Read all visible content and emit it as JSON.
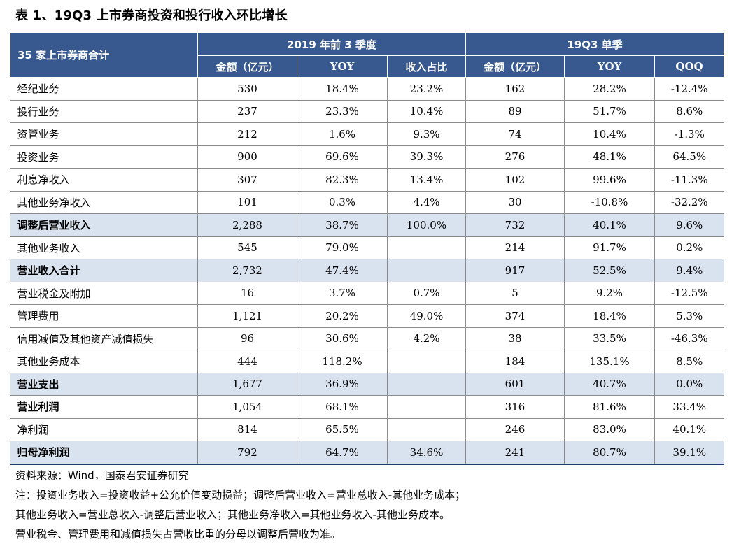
{
  "title": "表 1、19Q3 上市券商投资和投行收入环比增长",
  "header": {
    "corner": "35 家上市券商合计",
    "group1": "2019 年前 3 季度",
    "group2": "19Q3 单季",
    "cols": [
      "金额（亿元）",
      "YOY",
      "收入占比",
      "金额（亿元）",
      "YOY",
      "QOQ"
    ]
  },
  "rows": [
    {
      "label": "经纪业务",
      "values": [
        "530",
        "18.4%",
        "23.2%",
        "162",
        "28.2%",
        "-12.4%"
      ],
      "highlight": false,
      "bold": false
    },
    {
      "label": "投行业务",
      "values": [
        "237",
        "23.3%",
        "10.4%",
        "89",
        "51.7%",
        "8.6%"
      ],
      "highlight": false,
      "bold": false
    },
    {
      "label": "资管业务",
      "values": [
        "212",
        "1.6%",
        "9.3%",
        "74",
        "10.4%",
        "-1.3%"
      ],
      "highlight": false,
      "bold": false
    },
    {
      "label": "投资业务",
      "values": [
        "900",
        "69.6%",
        "39.3%",
        "276",
        "48.1%",
        "64.5%"
      ],
      "highlight": false,
      "bold": false
    },
    {
      "label": "利息净收入",
      "values": [
        "307",
        "82.3%",
        "13.4%",
        "102",
        "99.6%",
        "-11.3%"
      ],
      "highlight": false,
      "bold": false
    },
    {
      "label": "其他业务净收入",
      "values": [
        "101",
        "0.3%",
        "4.4%",
        "30",
        "-10.8%",
        "-32.2%"
      ],
      "highlight": false,
      "bold": false
    },
    {
      "label": "调整后营业收入",
      "values": [
        "2,288",
        "38.7%",
        "100.0%",
        "732",
        "40.1%",
        "9.6%"
      ],
      "highlight": true,
      "bold": true
    },
    {
      "label": "其他业务收入",
      "values": [
        "545",
        "79.0%",
        "",
        "214",
        "91.7%",
        "0.2%"
      ],
      "highlight": false,
      "bold": false
    },
    {
      "label": "营业收入合计",
      "values": [
        "2,732",
        "47.4%",
        "",
        "917",
        "52.5%",
        "9.4%"
      ],
      "highlight": true,
      "bold": true
    },
    {
      "label": "营业税金及附加",
      "values": [
        "16",
        "3.7%",
        "0.7%",
        "5",
        "9.2%",
        "-12.5%"
      ],
      "highlight": false,
      "bold": false
    },
    {
      "label": "管理费用",
      "values": [
        "1,121",
        "20.2%",
        "49.0%",
        "374",
        "18.4%",
        "5.3%"
      ],
      "highlight": false,
      "bold": false
    },
    {
      "label": "信用减值及其他资产减值损失",
      "values": [
        "96",
        "30.6%",
        "4.2%",
        "38",
        "33.5%",
        "-46.3%"
      ],
      "highlight": false,
      "bold": false
    },
    {
      "label": "其他业务成本",
      "values": [
        "444",
        "118.2%",
        "",
        "184",
        "135.1%",
        "8.5%"
      ],
      "highlight": false,
      "bold": false
    },
    {
      "label": "营业支出",
      "values": [
        "1,677",
        "36.9%",
        "",
        "601",
        "40.7%",
        "0.0%"
      ],
      "highlight": true,
      "bold": true
    },
    {
      "label": "营业利润",
      "values": [
        "1,054",
        "68.1%",
        "",
        "316",
        "81.6%",
        "33.4%"
      ],
      "highlight": false,
      "bold": true
    },
    {
      "label": "净利润",
      "values": [
        "814",
        "65.5%",
        "",
        "246",
        "83.0%",
        "40.1%"
      ],
      "highlight": false,
      "bold": false
    },
    {
      "label": "归母净利润",
      "values": [
        "792",
        "64.7%",
        "34.6%",
        "241",
        "80.7%",
        "39.1%"
      ],
      "highlight": true,
      "bold": true
    }
  ],
  "notes": [
    "资料来源：Wind，国泰君安证券研究",
    "注：投资业务收入=投资收益+公允价值变动损益；调整后营业收入=营业总收入-其他业务成本；",
    "其他业务收入=营业总收入-调整后营业收入；其他业务净收入=其他业务收入-其他业务成本。",
    "营业税金、管理费用和减值损失占营收比重的分母以调整后营收为准。"
  ]
}
